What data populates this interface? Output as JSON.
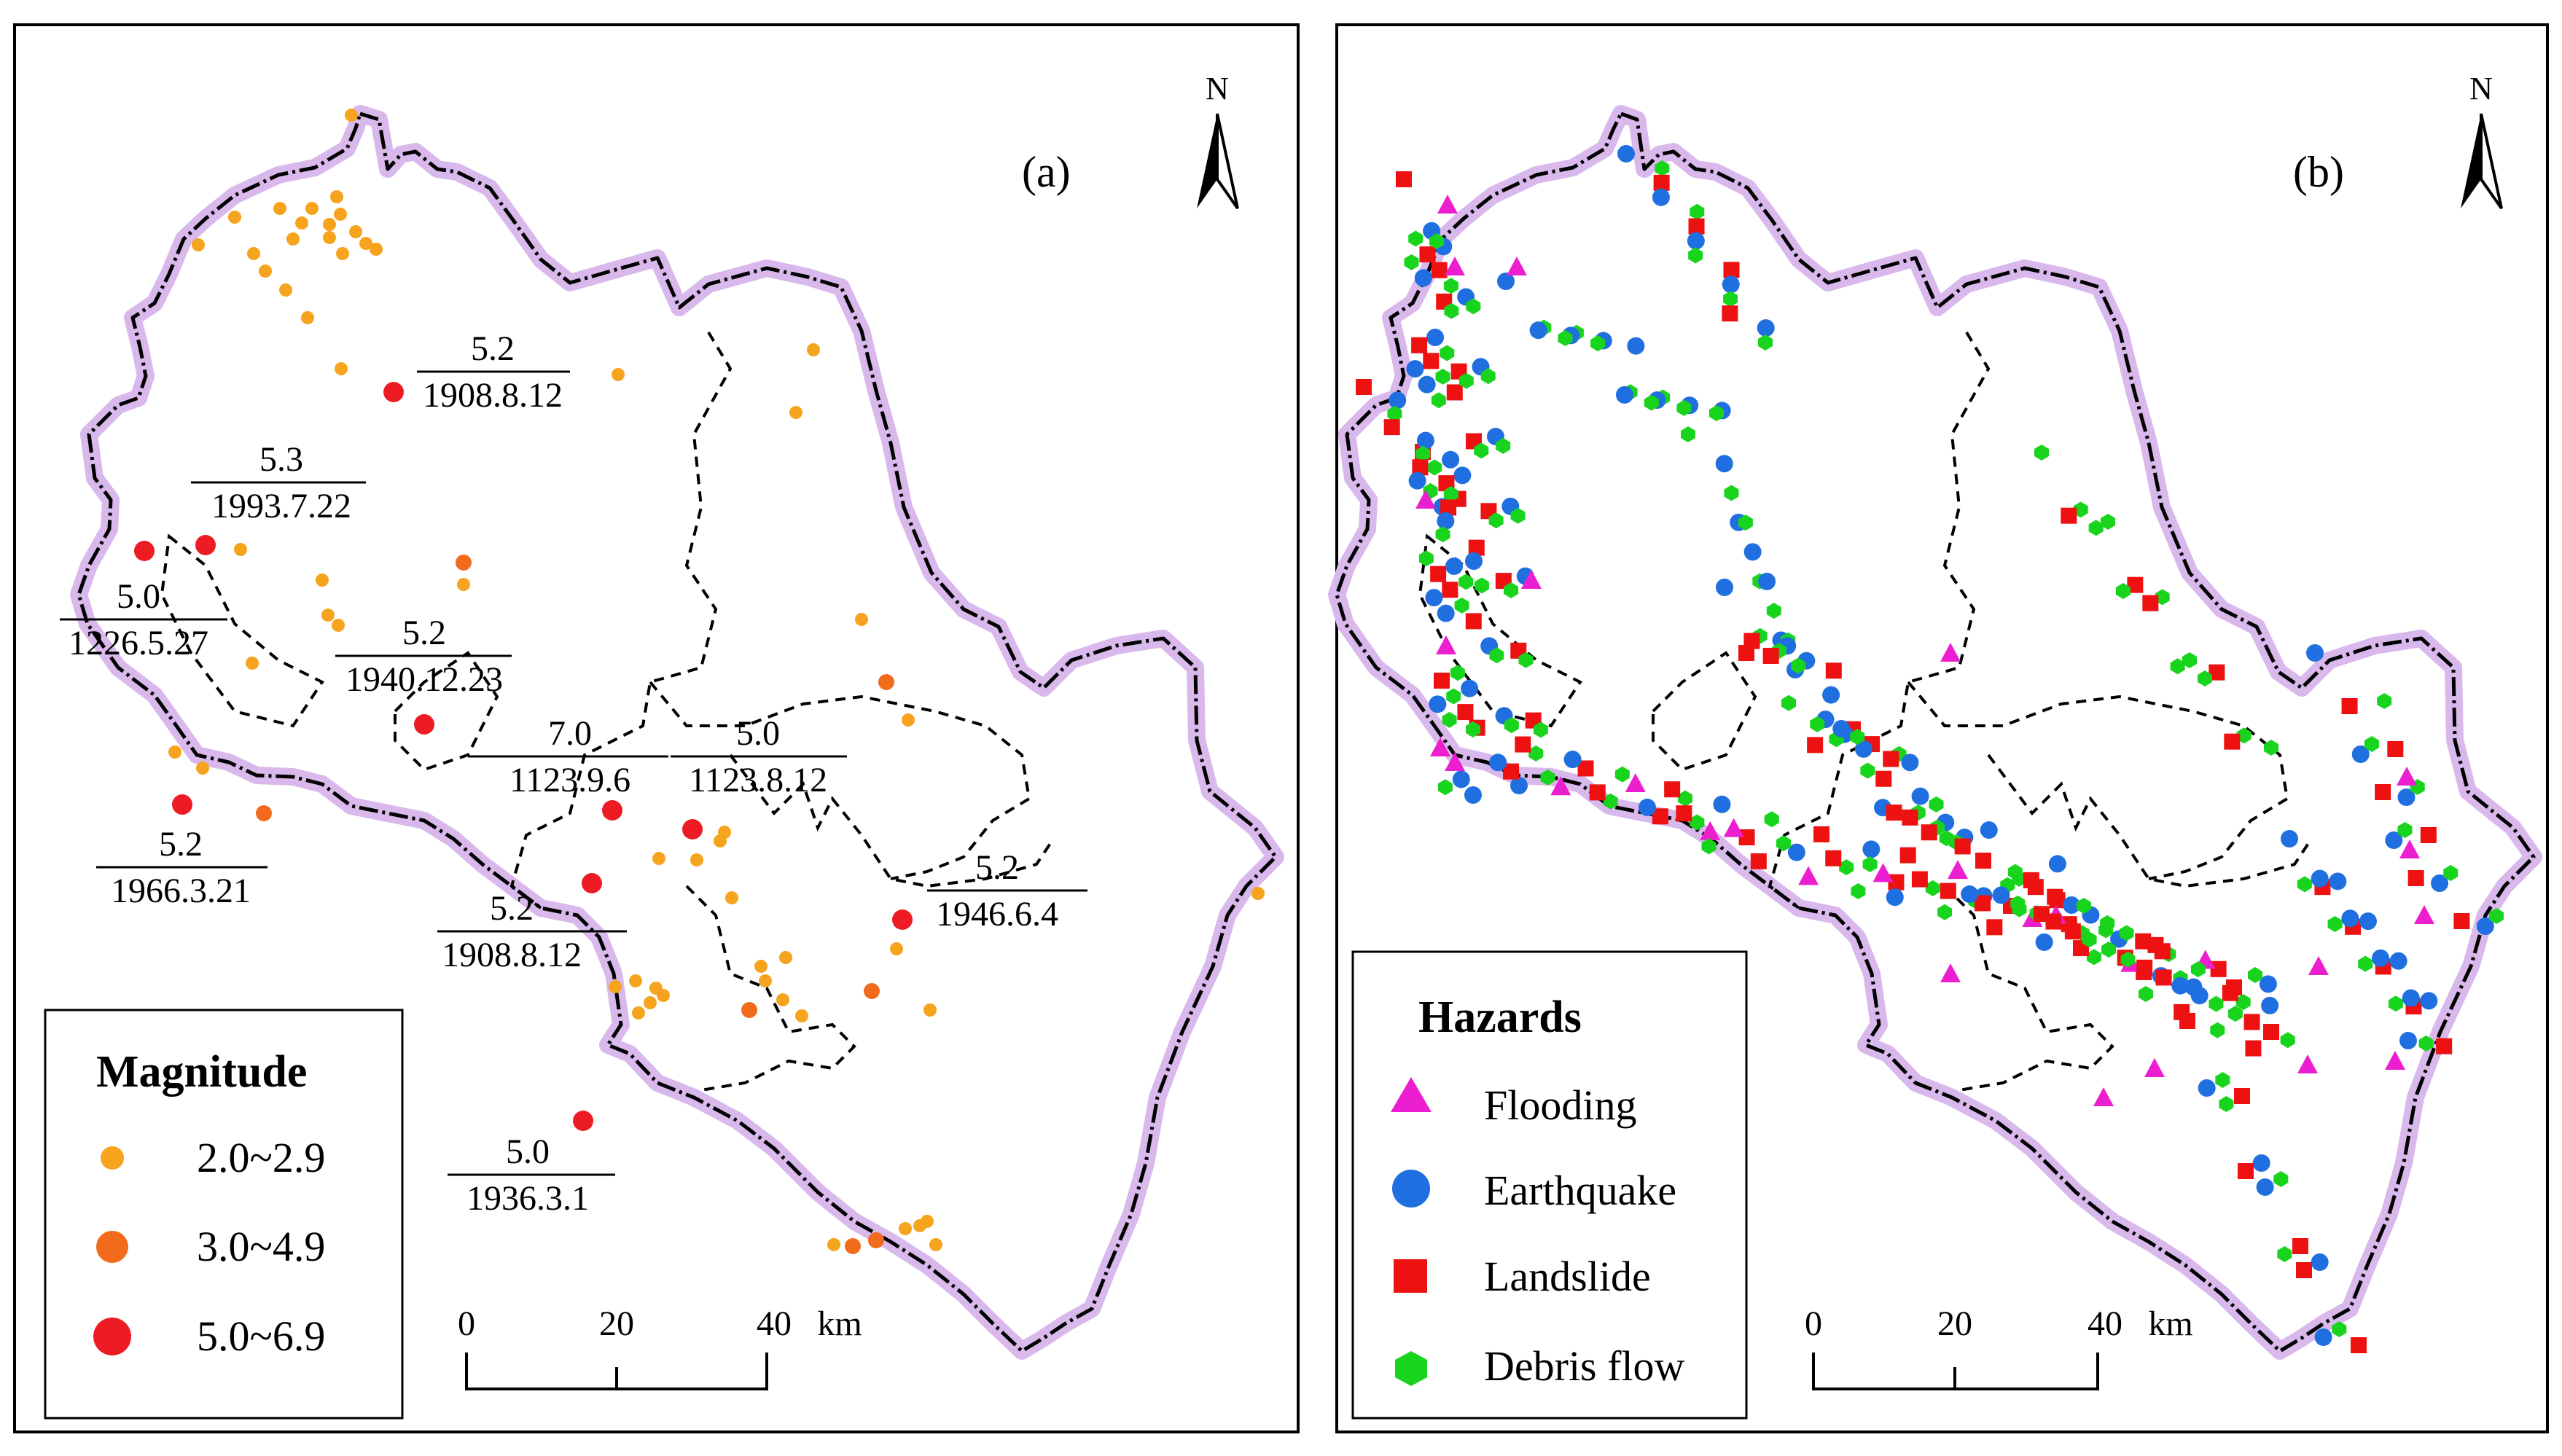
{
  "panel_a": {
    "label": "(a)",
    "north": "N",
    "legend": {
      "title": "Magnitude",
      "items": [
        {
          "label": "2.0~2.9",
          "color": "#f6a31e"
        },
        {
          "label": "3.0~4.9",
          "color": "#f26b1d"
        },
        {
          "label": "5.0~6.9",
          "color": "#ed1c24"
        }
      ]
    },
    "scale": {
      "ticks": [
        "0",
        "20",
        "40"
      ],
      "unit": "km"
    },
    "events": [
      {
        "magnitude": "5.2",
        "date": "1908.8.12"
      },
      {
        "magnitude": "5.3",
        "date": "1993.7.22"
      },
      {
        "magnitude": "5.0",
        "date": "1226.5.27"
      },
      {
        "magnitude": "5.2",
        "date": "1940.12.23"
      },
      {
        "magnitude": "7.0",
        "date": "1123.9.6"
      },
      {
        "magnitude": "5.0",
        "date": "1123.8.12"
      },
      {
        "magnitude": "5.2",
        "date": "1966.3.21"
      },
      {
        "magnitude": "5.2",
        "date": "1946.6.4"
      },
      {
        "magnitude": "5.2",
        "date": "1908.8.12"
      },
      {
        "magnitude": "5.0",
        "date": "1936.3.1"
      }
    ]
  },
  "panel_b": {
    "label": "(b)",
    "north": "N",
    "legend": {
      "title": "Hazards",
      "items": [
        {
          "label": "Flooding",
          "color": "#ec1fd0",
          "icon": "triangle-icon"
        },
        {
          "label": "Earthquake",
          "color": "#1f6fe0",
          "icon": "circle-icon"
        },
        {
          "label": "Landslide",
          "color": "#ee1111",
          "icon": "square-icon"
        },
        {
          "label": "Debris flow",
          "color": "#19d41d",
          "icon": "hexagon-icon"
        }
      ]
    },
    "scale": {
      "ticks": [
        "0",
        "20",
        "40"
      ],
      "unit": "km"
    }
  }
}
